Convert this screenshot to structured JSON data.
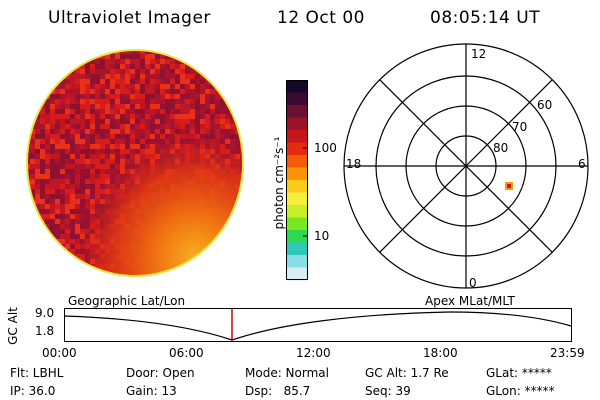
{
  "header": {
    "title": "Ultraviolet Imager",
    "date": "12 Oct 00",
    "time": "08:05:14 UT"
  },
  "colorbar": {
    "unit_label": "photon cm⁻²s⁻¹",
    "tick_labels": [
      "100",
      "10"
    ],
    "colors": [
      "#14082c",
      "#3a0a34",
      "#6a1030",
      "#9a1428",
      "#c8161e",
      "#e62a10",
      "#f45a08",
      "#fb9404",
      "#fccc1a",
      "#f6ee3c",
      "#c6ef28",
      "#7ae820",
      "#2fd850",
      "#30c8b8",
      "#8adce8",
      "#d6eef4"
    ]
  },
  "image_panel": {
    "rim_color": "#e6e640",
    "base_color": "#b3142a"
  },
  "polar_plot": {
    "mlt_labels": [
      "12",
      "18",
      "6",
      "0"
    ],
    "lat_labels": [
      "60",
      "70",
      "80"
    ],
    "marker_color": "#ff9a00"
  },
  "timeline": {
    "left_header": "Geographic Lat/Lon",
    "right_header": "Apex MLat/MLT",
    "y_label": "GC Alt",
    "y_ticks": [
      "9.0",
      "1.8"
    ],
    "x_ticks": [
      "00:00",
      "06:00",
      "12:00",
      "18:00",
      "23:59"
    ],
    "cursor_color": "#cc0000"
  },
  "info": {
    "flt": "Flt: LBHL",
    "ip": "IP: 36.0",
    "door": "Door: Open",
    "gain": "Gain: 13",
    "mode": "Mode: Normal",
    "dsp": "Dsp:   85.7",
    "gc_alt": "GC Alt: 1.7 Re",
    "seq": "Seq: 39",
    "glat": "GLat: *****",
    "glon": "GLon: *****"
  }
}
